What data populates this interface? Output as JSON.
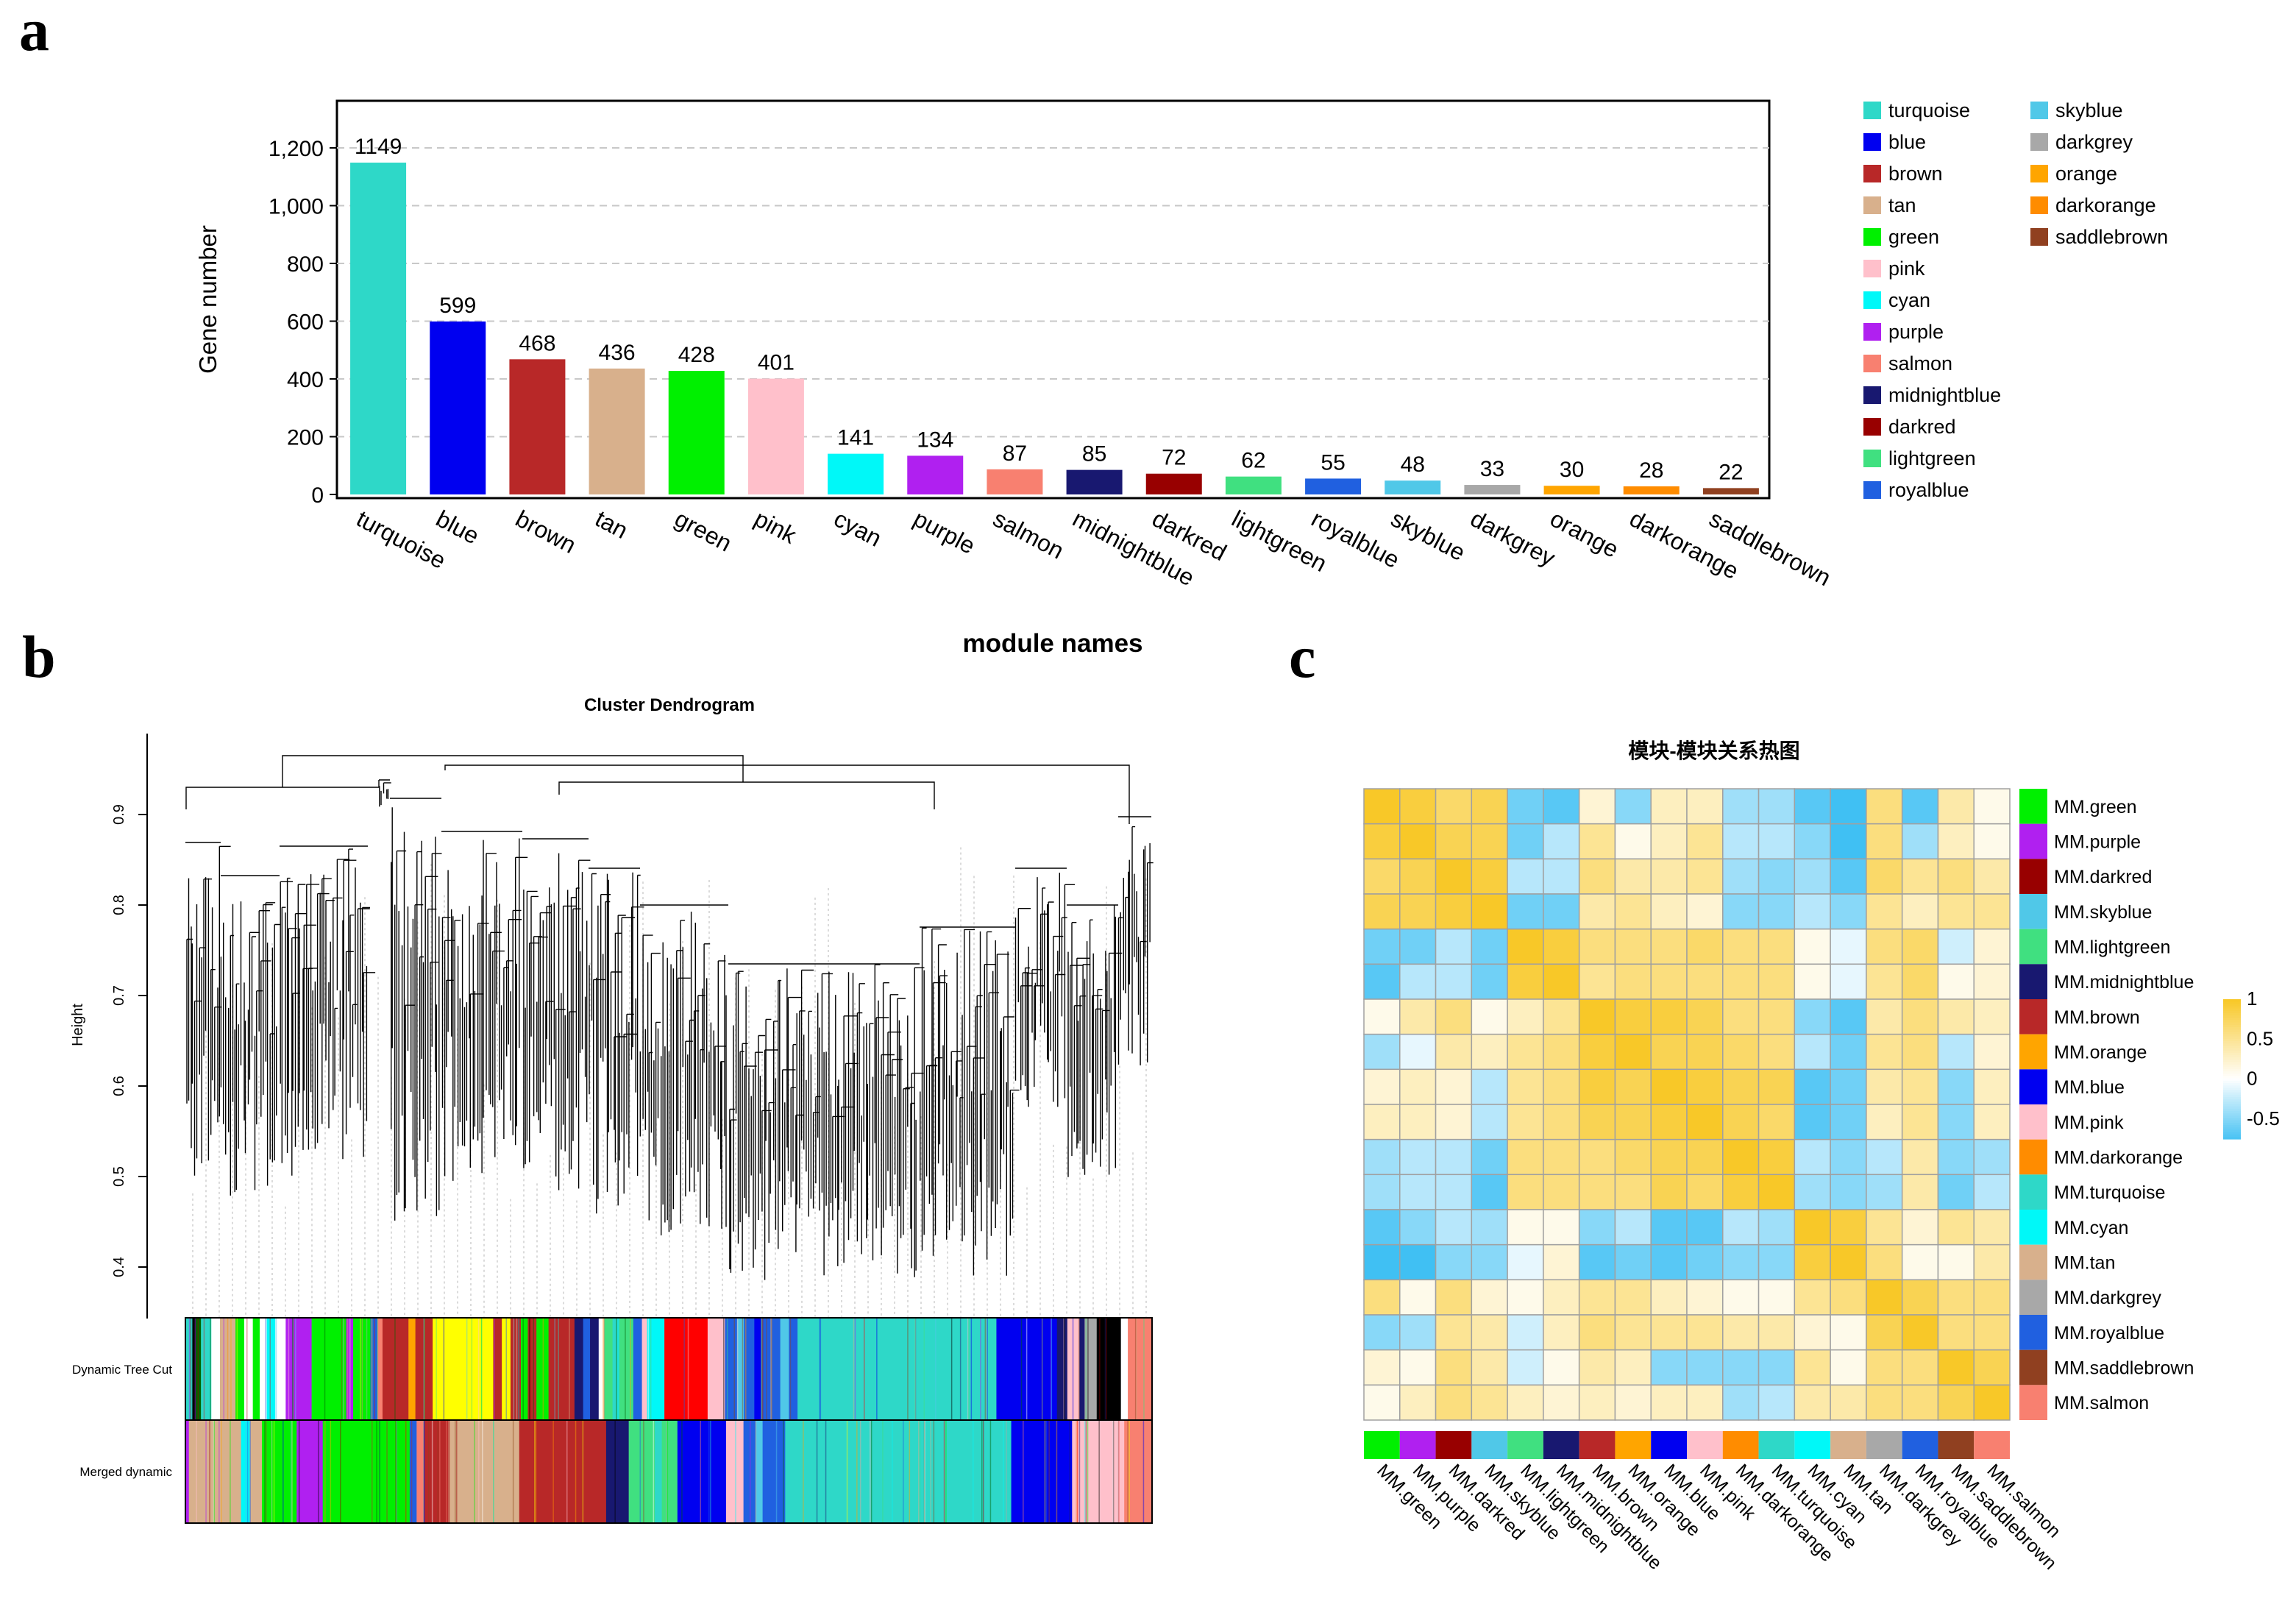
{
  "panels": {
    "a": "a",
    "b": "b",
    "c": "c"
  },
  "chart_data": [
    {
      "type": "bar",
      "id": "module-size",
      "xlabel": "module names",
      "ylabel": "Gene number",
      "ylim": [
        0,
        1300
      ],
      "yticks": [
        0,
        200,
        400,
        600,
        800,
        1000,
        1200
      ],
      "ytick_labels": [
        "0",
        "200",
        "400",
        "600",
        "800",
        "1,000",
        "1,200"
      ],
      "grid": "horizontal dashed",
      "categories": [
        "turquoise",
        "blue",
        "brown",
        "tan",
        "green",
        "pink",
        "cyan",
        "purple",
        "salmon",
        "midnightblue",
        "darkred",
        "lightgreen",
        "royalblue",
        "skyblue",
        "darkgrey",
        "orange",
        "darkorange",
        "saddlebrown"
      ],
      "values": [
        1149,
        599,
        468,
        436,
        428,
        401,
        141,
        134,
        87,
        85,
        72,
        62,
        55,
        48,
        33,
        30,
        28,
        22
      ],
      "colors": [
        "#2ED8C8",
        "#0000F0",
        "#B82828",
        "#D8B08C",
        "#00F000",
        "#FFC0CB",
        "#00F8F8",
        "#B020F0",
        "#F88070",
        "#181870",
        "#980000",
        "#40E080",
        "#2060E0",
        "#50C8E8",
        "#A8A8A8",
        "#FFA500",
        "#FF8C00",
        "#904020"
      ],
      "legend": {
        "position": "right",
        "entries": [
          "turquoise",
          "blue",
          "brown",
          "tan",
          "green",
          "pink",
          "cyan",
          "purple",
          "salmon",
          "midnightblue",
          "darkred",
          "lightgreen",
          "royalblue",
          "skyblue",
          "darkgrey",
          "orange",
          "darkorange",
          "saddlebrown"
        ]
      }
    },
    {
      "type": "dendrogram",
      "id": "cluster-dendrogram",
      "title": "Cluster Dendrogram",
      "ylabel": "Height",
      "ylim": [
        0.35,
        1.0
      ],
      "yticks": [
        0.4,
        0.5,
        0.6,
        0.7,
        0.8,
        0.9
      ],
      "ytick_labels": [
        "0.4",
        "0.5",
        "0.6",
        "0.7",
        "0.8",
        "0.9"
      ],
      "color_rows": [
        "Dynamic Tree Cut",
        "Merged dynamic"
      ]
    },
    {
      "type": "heatmap",
      "id": "module-correlation",
      "title": "模块-模块关系热图",
      "labels": [
        "MM.green",
        "MM.purple",
        "MM.darkred",
        "MM.skyblue",
        "MM.lightgreen",
        "MM.midnightblue",
        "MM.brown",
        "MM.orange",
        "MM.blue",
        "MM.pink",
        "MM.darkorange",
        "MM.turquoise",
        "MM.cyan",
        "MM.tan",
        "MM.darkgrey",
        "MM.royalblue",
        "MM.saddlebrown",
        "MM.salmon"
      ],
      "label_colors": [
        "#00F000",
        "#B020F0",
        "#980000",
        "#50C8E8",
        "#40E080",
        "#181870",
        "#B82828",
        "#FFA500",
        "#0000F0",
        "#FFC0CB",
        "#FF8C00",
        "#2ED8C8",
        "#00F8F8",
        "#D8B08C",
        "#A8A8A8",
        "#2060E0",
        "#904020",
        "#F88070"
      ],
      "colorbar": {
        "ticks": [
          1,
          0.5,
          0,
          -0.5
        ],
        "tick_labels": [
          "1",
          "0.5",
          "0",
          "-0.5"
        ],
        "low": "#10B0F0",
        "mid": "#FFFFFF",
        "high": "#F8C828"
      },
      "values": [
        [
          1,
          0.9,
          0.7,
          0.8,
          -0.6,
          -0.7,
          0.2,
          -0.5,
          0.3,
          0.3,
          -0.4,
          -0.4,
          -0.7,
          -0.8,
          0.6,
          -0.7,
          0.4,
          0.1
        ],
        [
          0.9,
          1,
          0.8,
          0.8,
          -0.6,
          -0.3,
          0.5,
          0.1,
          0.3,
          0.5,
          -0.3,
          -0.3,
          -0.5,
          -0.8,
          0.6,
          -0.4,
          0.3,
          0.1
        ],
        [
          0.7,
          0.8,
          1,
          0.9,
          -0.3,
          -0.3,
          0.6,
          0.4,
          0.4,
          0.5,
          -0.4,
          -0.5,
          -0.4,
          -0.7,
          0.7,
          0.5,
          0.6,
          0.4
        ],
        [
          0.8,
          0.8,
          0.9,
          1,
          -0.6,
          -0.6,
          0.4,
          0.5,
          0.3,
          0.2,
          -0.5,
          -0.5,
          -0.3,
          -0.5,
          0.5,
          0.3,
          0.5,
          0.5
        ],
        [
          -0.6,
          -0.6,
          -0.3,
          -0.6,
          1,
          0.9,
          0.6,
          0.6,
          0.6,
          0.7,
          0.6,
          0.6,
          0.1,
          -0.1,
          0.6,
          0.7,
          -0.2,
          0.2
        ],
        [
          -0.7,
          -0.3,
          -0.3,
          -0.6,
          0.9,
          1,
          0.5,
          0.6,
          0.6,
          0.6,
          0.6,
          0.6,
          0.1,
          -0.1,
          0.5,
          0.7,
          0.1,
          0.2
        ],
        [
          0.1,
          0.4,
          0.6,
          0.1,
          0.3,
          0.5,
          1,
          0.9,
          0.9,
          0.8,
          0.6,
          0.6,
          -0.5,
          -0.7,
          0.4,
          0.6,
          0.4,
          0.3
        ],
        [
          -0.4,
          -0.1,
          0.4,
          0.3,
          0.5,
          0.6,
          0.9,
          1,
          0.8,
          0.8,
          0.7,
          0.6,
          -0.3,
          -0.6,
          0.5,
          0.6,
          -0.3,
          0.2
        ],
        [
          0.2,
          0.3,
          0.2,
          -0.3,
          0.5,
          0.6,
          0.9,
          0.8,
          1,
          0.9,
          0.8,
          0.8,
          -0.7,
          -0.6,
          0.4,
          0.5,
          -0.5,
          0.3
        ],
        [
          0.3,
          0.3,
          0.2,
          -0.3,
          0.5,
          0.6,
          0.8,
          0.8,
          0.9,
          1,
          0.8,
          0.7,
          -0.7,
          -0.6,
          0.3,
          0.5,
          -0.5,
          0.3
        ],
        [
          -0.4,
          -0.3,
          -0.3,
          -0.6,
          0.6,
          0.6,
          0.6,
          0.7,
          0.8,
          0.8,
          1,
          0.9,
          -0.3,
          -0.5,
          -0.3,
          0.4,
          -0.5,
          -0.4
        ],
        [
          -0.4,
          -0.3,
          -0.3,
          -0.7,
          0.6,
          0.6,
          0.6,
          0.6,
          0.8,
          0.7,
          0.9,
          1,
          -0.4,
          -0.5,
          -0.4,
          0.4,
          -0.6,
          -0.3
        ],
        [
          -0.7,
          -0.5,
          -0.3,
          -0.4,
          0.1,
          0.1,
          -0.5,
          -0.3,
          -0.7,
          -0.7,
          -0.3,
          -0.4,
          1,
          0.9,
          0.5,
          0.2,
          0.5,
          0.4
        ],
        [
          -0.8,
          -0.8,
          -0.5,
          -0.5,
          -0.1,
          0.2,
          -0.7,
          -0.6,
          -0.7,
          -0.6,
          -0.5,
          -0.5,
          0.9,
          1,
          0.6,
          0.1,
          0.1,
          0.4
        ],
        [
          0.6,
          0.1,
          0.6,
          0.2,
          0.1,
          0.3,
          0.5,
          0.5,
          0.3,
          0.2,
          0.1,
          0.1,
          0.5,
          0.6,
          1,
          0.8,
          0.6,
          0.6
        ],
        [
          -0.5,
          -0.4,
          0.5,
          0.4,
          -0.2,
          0.3,
          0.6,
          0.5,
          0.5,
          0.5,
          0.4,
          0.4,
          0.2,
          0.1,
          0.8,
          1,
          0.6,
          0.6
        ],
        [
          0.2,
          0.1,
          0.6,
          0.4,
          -0.2,
          0.1,
          0.4,
          0.3,
          -0.5,
          -0.5,
          -0.5,
          -0.5,
          0.5,
          0.1,
          0.6,
          0.6,
          1,
          0.8
        ],
        [
          0.1,
          0.3,
          0.6,
          0.5,
          0.3,
          0.2,
          0.3,
          0.2,
          0.3,
          0.3,
          -0.4,
          -0.3,
          0.4,
          0.4,
          0.6,
          0.6,
          0.8,
          1
        ]
      ]
    }
  ]
}
